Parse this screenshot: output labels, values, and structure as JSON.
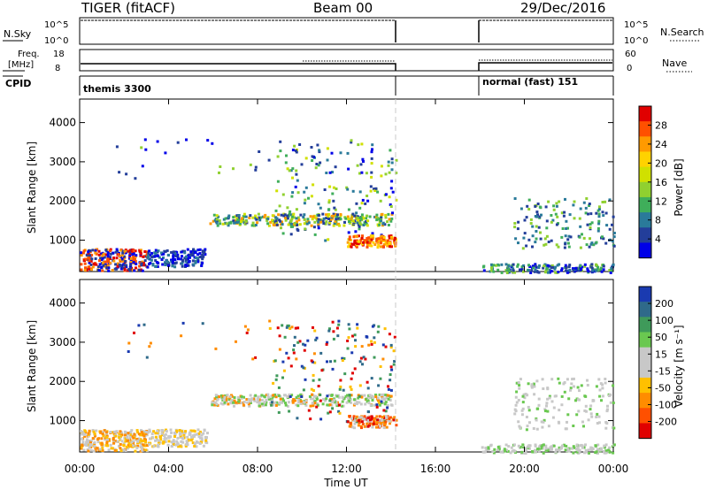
{
  "header": {
    "title": "TIGER (fitACF)",
    "beam": "Beam 00",
    "date": "29/Dec/2016"
  },
  "strips": {
    "nsky_label": "N.Sky",
    "nsearch_label": "N.Search",
    "nsky_ticks": [
      "10^5",
      "10^0"
    ],
    "nsearch_ticks": [
      "10^5",
      "10^0"
    ],
    "freq_label_1": "Freq.",
    "freq_label_2": "[MHz]",
    "freq_ticks": [
      "18",
      "8"
    ],
    "nave_label": "Nave",
    "nave_ticks": [
      "60",
      "0"
    ],
    "cpid_label": "CPID",
    "cpid_segments": [
      "themis 3300",
      "normal (fast) 151"
    ]
  },
  "chart_data": [
    {
      "type": "heatmap",
      "name": "power-panel",
      "ylabel": "Slant Range [km]",
      "yticks": [
        "4000",
        "3000",
        "2000",
        "1000"
      ],
      "ylim": [
        200,
        4600
      ],
      "xlim_hours": [
        0,
        24
      ],
      "colorbar_label": "Power [dB]",
      "colorbar_ticks": [
        "28",
        "24",
        "20",
        "16",
        "12",
        "8",
        "4"
      ],
      "colorbar_colors": [
        "#e00000",
        "#ff5000",
        "#ff9a00",
        "#ffd200",
        "#d0e000",
        "#90d030",
        "#3fae5a",
        "#2a7a9a",
        "#233e9a",
        "#0000e8"
      ]
    },
    {
      "type": "heatmap",
      "name": "velocity-panel",
      "ylabel": "Slant Range [km]",
      "yticks": [
        "4000",
        "3000",
        "2000",
        "1000"
      ],
      "ylim": [
        200,
        4600
      ],
      "xlim_hours": [
        0,
        24
      ],
      "colorbar_label": "Velocity [m s⁻¹]",
      "colorbar_ticks": [
        "200",
        "100",
        "50",
        "15",
        "-15",
        "-50",
        "-100",
        "-200"
      ],
      "colorbar_colors": [
        "#1a3ab0",
        "#2f6a8a",
        "#3f9a5a",
        "#6ac850",
        "#c8c8c8",
        "#c8c8c8",
        "#ffc000",
        "#ff8c00",
        "#ff5000",
        "#e00000"
      ]
    }
  ],
  "xaxis": {
    "label": "Time UT",
    "ticks": [
      "00:00",
      "04:00",
      "08:00",
      "12:00",
      "16:00",
      "20:00",
      "00:00"
    ]
  }
}
